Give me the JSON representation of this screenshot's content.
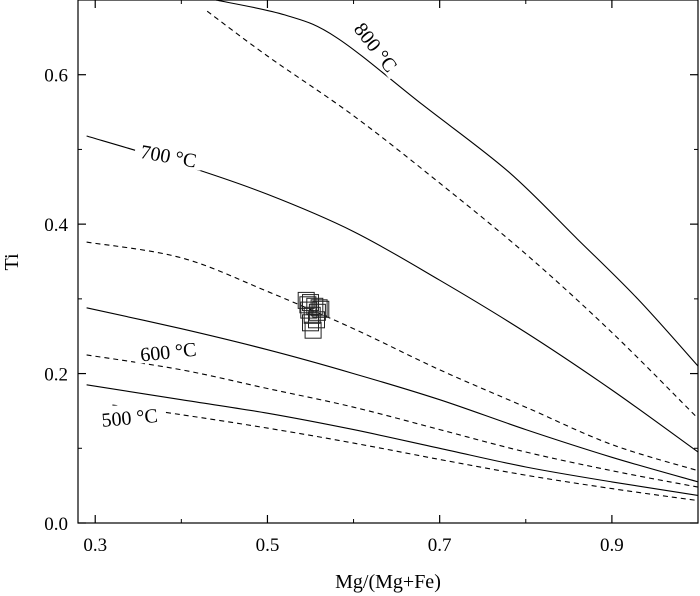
{
  "chart_data": {
    "type": "scatter",
    "xlabel": "Mg/(Mg+Fe)",
    "ylabel": "Ti",
    "xlim": [
      0.28,
      1.0
    ],
    "ylim": [
      0.0,
      0.7
    ],
    "x_ticks": [
      {
        "value": 0.3,
        "label": "0.3"
      },
      {
        "value": 0.5,
        "label": "0.5"
      },
      {
        "value": 0.7,
        "label": "0.7"
      },
      {
        "value": 0.9,
        "label": "0.9"
      }
    ],
    "x_minor_ticks": [
      0.4,
      0.6,
      0.8
    ],
    "y_ticks": [
      {
        "value": 0.0,
        "label": "0.0"
      },
      {
        "value": 0.2,
        "label": "0.2"
      },
      {
        "value": 0.4,
        "label": "0.4"
      },
      {
        "value": 0.6,
        "label": "0.6"
      }
    ],
    "y_minor_ticks": [
      0.1,
      0.3,
      0.5
    ],
    "grid": false,
    "isotherms": [
      {
        "label": "800 °C",
        "style": "solid",
        "label_at": [
          0.625,
          0.636
        ],
        "label_angle": 52,
        "x": [
          0.44,
          0.52,
          0.58,
          0.68,
          0.78,
          0.86,
          0.93,
          1.0
        ],
        "y": [
          0.7,
          0.68,
          0.65,
          0.56,
          0.47,
          0.38,
          0.3,
          0.21
        ]
      },
      {
        "label": "",
        "style": "dashed",
        "x": [
          0.43,
          0.5,
          0.6,
          0.7,
          0.8,
          0.9,
          1.0
        ],
        "y": [
          0.685,
          0.625,
          0.545,
          0.455,
          0.36,
          0.255,
          0.14
        ]
      },
      {
        "label": "700 °C",
        "style": "solid",
        "label_at": [
          0.385,
          0.49
        ],
        "label_angle": 10,
        "x": [
          0.29,
          0.4,
          0.5,
          0.6,
          0.7,
          0.8,
          0.9,
          1.0
        ],
        "y": [
          0.518,
          0.48,
          0.44,
          0.39,
          0.325,
          0.255,
          0.178,
          0.095
        ]
      },
      {
        "label": "",
        "style": "dashed",
        "x": [
          0.29,
          0.4,
          0.5,
          0.6,
          0.7,
          0.8,
          0.9,
          1.0
        ],
        "y": [
          0.376,
          0.355,
          0.31,
          0.26,
          0.205,
          0.155,
          0.105,
          0.07
        ]
      },
      {
        "label": "600 °C",
        "style": "solid",
        "label_at": [
          0.385,
          0.228
        ],
        "label_angle": -6,
        "x": [
          0.29,
          0.4,
          0.5,
          0.6,
          0.7,
          0.8,
          0.9,
          1.0
        ],
        "y": [
          0.288,
          0.26,
          0.232,
          0.2,
          0.165,
          0.125,
          0.088,
          0.055
        ]
      },
      {
        "label": "",
        "style": "dashed",
        "x": [
          0.29,
          0.4,
          0.5,
          0.6,
          0.7,
          0.8,
          0.9,
          1.0
        ],
        "y": [
          0.225,
          0.205,
          0.18,
          0.155,
          0.125,
          0.095,
          0.07,
          0.048
        ]
      },
      {
        "label": "500 °C",
        "style": "solid",
        "label_at": [
          0.34,
          0.14
        ],
        "label_angle": -5,
        "x": [
          0.29,
          0.4,
          0.5,
          0.6,
          0.7,
          0.8,
          0.9,
          1.0
        ],
        "y": [
          0.185,
          0.165,
          0.147,
          0.125,
          0.1,
          0.075,
          0.055,
          0.037
        ]
      },
      {
        "label": "",
        "style": "dashed",
        "x": [
          0.32,
          0.4,
          0.5,
          0.6,
          0.7,
          0.8,
          0.9,
          1.0
        ],
        "y": [
          0.158,
          0.145,
          0.127,
          0.107,
          0.085,
          0.064,
          0.046,
          0.03
        ]
      }
    ],
    "points": {
      "marker": "open-square",
      "x": [
        0.545,
        0.55,
        0.555,
        0.56,
        0.548,
        0.558,
        0.552,
        0.562,
        0.557,
        0.55,
        0.553,
        0.547
      ],
      "y": [
        0.298,
        0.295,
        0.29,
        0.288,
        0.285,
        0.282,
        0.278,
        0.286,
        0.272,
        0.268,
        0.258,
        0.292
      ]
    }
  }
}
